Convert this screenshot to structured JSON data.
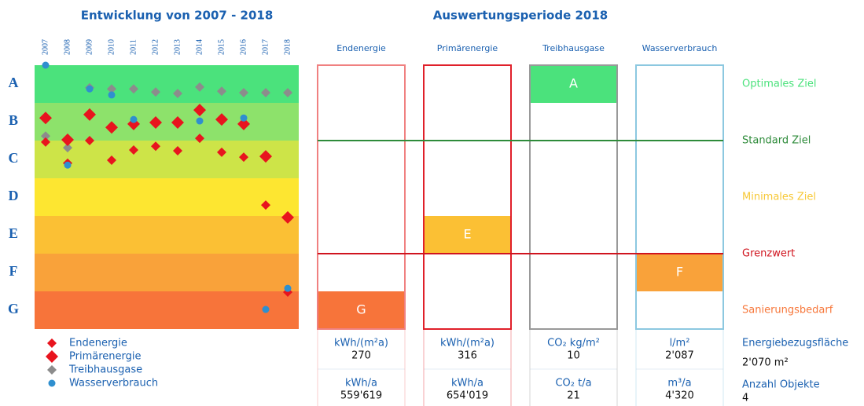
{
  "chart_data": {
    "type": "scatter",
    "title": "Entwicklung von 2007 - 2018",
    "categories": [
      "2007",
      "2008",
      "2009",
      "2010",
      "2011",
      "2012",
      "2013",
      "2014",
      "2015",
      "2016",
      "2017",
      "2018"
    ],
    "ylim": [
      7.5,
      0.5
    ],
    "yticks": [
      {
        "value": 1,
        "label": "A"
      },
      {
        "value": 2,
        "label": "B"
      },
      {
        "value": 3,
        "label": "C"
      },
      {
        "value": 4,
        "label": "D"
      },
      {
        "value": 5,
        "label": "E"
      },
      {
        "value": 6,
        "label": "F"
      },
      {
        "value": 7,
        "label": "G"
      }
    ],
    "band_colors": [
      "#4be27c",
      "#8de26b",
      "#cde448",
      "#fde631",
      "#fbc034",
      "#f9a23a",
      "#f7743a"
    ],
    "series": [
      {
        "name": "Endenergie",
        "color": "#e8141e",
        "marker": "diamond-small",
        "values": [
          2.54,
          3.1,
          2.5,
          3.02,
          2.75,
          2.65,
          2.77,
          2.44,
          2.81,
          2.94,
          4.21,
          6.52
        ]
      },
      {
        "name": "Primärenergie",
        "color": "#e8141e",
        "marker": "diamond",
        "values": [
          1.9,
          2.48,
          1.81,
          2.15,
          2.06,
          2.02,
          2.02,
          1.69,
          1.94,
          2.06,
          2.92,
          4.54
        ]
      },
      {
        "name": "Treibhausgase",
        "color": "#8c8c8c",
        "marker": "diamond-small",
        "values": [
          2.38,
          2.69,
          1.1,
          1.13,
          1.13,
          1.21,
          1.25,
          1.08,
          1.19,
          1.23,
          1.23,
          1.23
        ]
      },
      {
        "name": "Wasserverbrauch",
        "color": "#2f8fcf",
        "marker": "circle",
        "values": [
          0.5,
          3.15,
          1.13,
          1.29,
          1.94,
          null,
          null,
          1.98,
          null,
          1.9,
          6.98,
          6.42
        ]
      }
    ]
  },
  "evaluation": {
    "title": "Auswertungsperiode 2018",
    "columns": [
      {
        "name": "Endenergie",
        "rating": "G",
        "border": "#f08080",
        "unit1": "kWh/(m²a)",
        "value1": "270",
        "unit2": "kWh/a",
        "value2": "559'619"
      },
      {
        "name": "Primärenergie",
        "rating": "E",
        "border": "#e0202a",
        "unit1": "kWh/(m²a)",
        "value1": "316",
        "unit2": "kWh/a",
        "value2": "654'019"
      },
      {
        "name": "Treibhausgase",
        "rating": "A",
        "border": "#999999",
        "unit1": "CO₂ kg/m²",
        "value1": "10",
        "unit2": "CO₂ t/a",
        "value2": "21"
      },
      {
        "name": "Wasserverbrauch",
        "rating": "F",
        "border": "#8cc8e0",
        "unit1": "l/m²",
        "value1": "2'087",
        "unit2": "m³/a",
        "value2": "4'320"
      }
    ],
    "targets": [
      {
        "label": "Optimales Ziel",
        "color": "#4be27c"
      },
      {
        "label": "Standard Ziel",
        "color": "#2e8b3a"
      },
      {
        "label": "Minimales Ziel",
        "color": "#f7c836"
      },
      {
        "label": "Grenzwert",
        "color": "#d0141e"
      },
      {
        "label": "Sanierungsbedarf",
        "color": "#f7773a"
      }
    ],
    "info": [
      {
        "label": "Energiebezugsfläche",
        "value": "2'070 m²"
      },
      {
        "label": "Anzahl Objekte",
        "value": "4"
      }
    ]
  }
}
